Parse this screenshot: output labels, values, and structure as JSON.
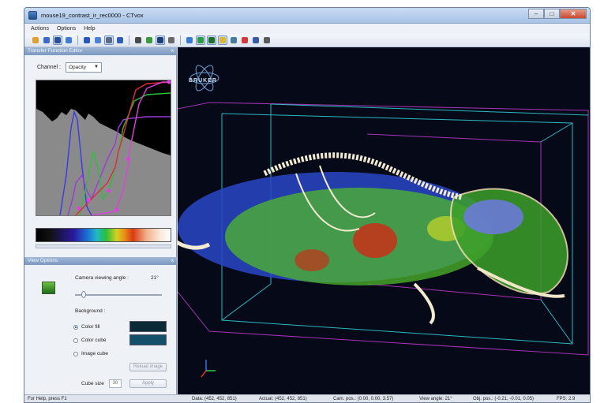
{
  "window": {
    "title": "mouse19_contrast_ir_rec0000 - CTvox"
  },
  "menu": [
    {
      "label": "Actions"
    },
    {
      "label": "Options"
    },
    {
      "label": "Help"
    }
  ],
  "toolbar": {
    "icons": [
      "open-icon",
      "save-icon",
      "view-icon",
      "box-icon",
      "sphere-icon",
      "light-icon",
      "select-icon",
      "move-icon",
      "rotate-icon",
      "clip-icon",
      "cube-icon",
      "camera-icon",
      "zoom-icon",
      "grid-icon",
      "slice-icon",
      "marker-icon",
      "ruler-icon",
      "pick-icon",
      "flip-icon",
      "help-icon"
    ],
    "selected": [
      2,
      6,
      10,
      13,
      14,
      15
    ]
  },
  "transfer_function": {
    "panel_title": "Transfer Function Editor",
    "channel_label": "Channel :",
    "channel_value": "Opacity",
    "close_glyph": "x"
  },
  "view_options": {
    "panel_title": "View Options",
    "close_glyph": "x",
    "camera_label": "Camera viewing angle :",
    "camera_value": "21°",
    "background_label": "Background :",
    "options": [
      {
        "label": "Color fill",
        "selected": true
      },
      {
        "label": "Color cube",
        "selected": false
      },
      {
        "label": "Image cube",
        "selected": false
      }
    ],
    "color_fill_swatch": "#0b2a38",
    "color_cube_swatch": "#14506a",
    "reload_label": "Reload image",
    "cube_size_label": "Cube size",
    "cube_size_value": "30",
    "apply_label": "Apply"
  },
  "viewport": {
    "background": "#060a18",
    "logo_text": "BRUKER"
  },
  "status": {
    "help": "For Help, press F1",
    "data": "Data: (452, 452, 851)",
    "actual": "Actual: (452, 452, 851)",
    "cam_pos": "Cam. pos.: (0.00, 0.00, 3.57)",
    "view_angle": "View angle: 21°",
    "obj_pos": "Obj. pos.: (-0.21, -0.01, 0.05)",
    "fps": "FPS: 2.9"
  }
}
